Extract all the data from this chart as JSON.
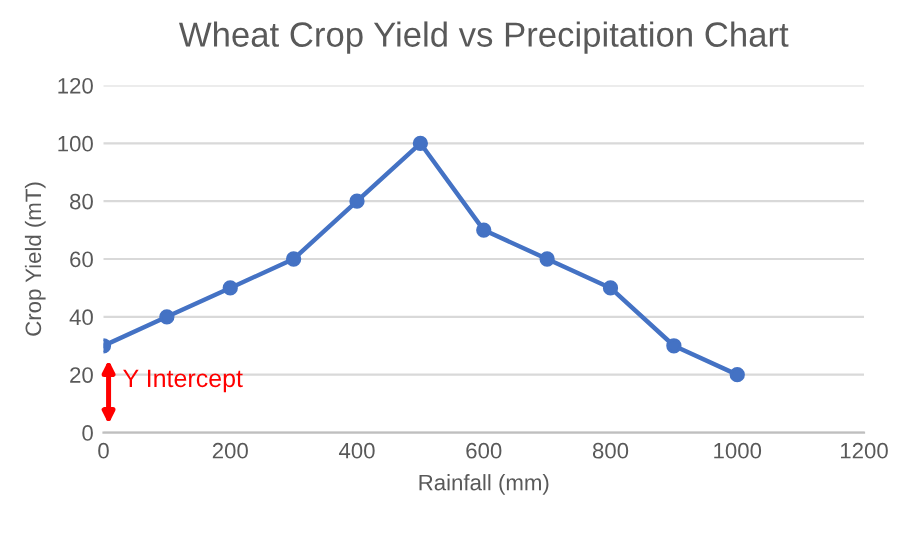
{
  "chart_data": {
    "type": "line",
    "title": "Wheat Crop Yield vs Precipitation Chart",
    "xlabel": "Rainfall (mm)",
    "ylabel": "Crop Yield (mT)",
    "x": [
      0,
      100,
      200,
      300,
      400,
      500,
      600,
      700,
      800,
      900,
      1000
    ],
    "series": [
      {
        "color": "#4472c4",
        "values": [
          30,
          40,
          50,
          60,
          80,
          100,
          70,
          60,
          50,
          30,
          20
        ]
      }
    ],
    "xlim": [
      0,
      1200
    ],
    "xticks": [
      0,
      200,
      400,
      600,
      800,
      1000,
      1200
    ],
    "ylim": [
      0,
      120
    ],
    "yticks": [
      0,
      20,
      40,
      60,
      80,
      100,
      120
    ],
    "grid": "y",
    "marker": "circle",
    "line_style": "solid",
    "legend": false,
    "annotations": [
      {
        "text": "Y Intercept",
        "x": 0,
        "y": 30
      }
    ]
  }
}
